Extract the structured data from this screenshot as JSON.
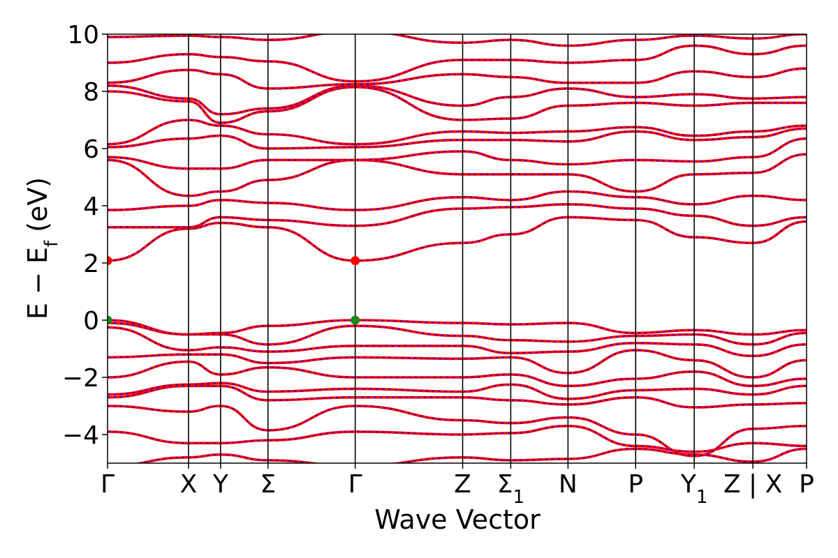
{
  "chart_data": {
    "type": "line",
    "title": "",
    "xlabel": "Wave Vector",
    "ylabel": "E − E_f (eV)",
    "ylabel_parts": {
      "main": "E − E",
      "sub": "f",
      "unit": " (eV)"
    },
    "ylim": [
      -5,
      10
    ],
    "yticks": [
      -4,
      -2,
      0,
      2,
      4,
      6,
      8,
      10
    ],
    "ytick_labels": [
      "−4",
      "−2",
      "0",
      "2",
      "4",
      "6",
      "8",
      "10"
    ],
    "xlim": [
      0,
      1
    ],
    "kpoints": [
      {
        "label": "Γ",
        "sub": "",
        "x": 0.0
      },
      {
        "label": "X",
        "sub": "",
        "x": 0.1158
      },
      {
        "label": "Y",
        "sub": "",
        "x": 0.1617
      },
      {
        "label": "Σ",
        "sub": "",
        "x": 0.2295
      },
      {
        "label": "Γ",
        "sub": "",
        "x": 0.3543
      },
      {
        "label": "Z",
        "sub": "",
        "x": 0.508
      },
      {
        "label": "Σ",
        "sub": "1",
        "x": 0.5768
      },
      {
        "label": "N",
        "sub": "",
        "x": 0.6587
      },
      {
        "label": "P",
        "sub": "",
        "x": 0.7555
      },
      {
        "label": "Y",
        "sub": "1",
        "x": 0.8393
      },
      {
        "label": "Z | X",
        "sub": "",
        "x": 0.9232
      },
      {
        "label": "P",
        "sub": "",
        "x": 1.0
      }
    ],
    "grid": false,
    "legend": "none",
    "series": [
      {
        "values_at_kpoints": [
          -5.1,
          -4.8,
          -4.7,
          -4.9,
          -5.1,
          -4.8,
          -4.9,
          -4.85,
          -4.5,
          -4.7,
          -4.95,
          -4.5
        ]
      },
      {
        "values_at_kpoints": [
          -3.9,
          -4.3,
          -4.3,
          -4.2,
          -3.9,
          -4.0,
          -3.95,
          -3.7,
          -4.4,
          -4.6,
          -4.3,
          -4.4
        ]
      },
      {
        "values_at_kpoints": [
          -3.0,
          -3.2,
          -3.0,
          -3.85,
          -3.0,
          -3.5,
          -3.6,
          -3.4,
          -4.0,
          -4.75,
          -3.8,
          -3.7
        ]
      },
      {
        "values_at_kpoints": [
          -2.7,
          -2.3,
          -2.3,
          -2.8,
          -2.7,
          -2.7,
          -2.8,
          -2.95,
          -2.7,
          -3.05,
          -2.95,
          -2.9
        ]
      },
      {
        "values_at_kpoints": [
          -2.6,
          -2.25,
          -2.2,
          -2.5,
          -2.4,
          -2.5,
          -2.25,
          -2.75,
          -2.45,
          -2.4,
          -2.6,
          -2.3
        ]
      },
      {
        "values_at_kpoints": [
          -2.0,
          -1.45,
          -1.9,
          -1.65,
          -2.0,
          -2.0,
          -1.9,
          -2.3,
          -2.05,
          -1.8,
          -2.3,
          -2.05
        ]
      },
      {
        "values_at_kpoints": [
          -1.3,
          -1.2,
          -1.2,
          -1.5,
          -1.3,
          -1.35,
          -1.3,
          -1.85,
          -1.05,
          -1.4,
          -2.0,
          -1.4
        ]
      },
      {
        "values_at_kpoints": [
          -0.25,
          -1.05,
          -0.95,
          -1.1,
          -0.9,
          -0.9,
          -1.15,
          -1.1,
          -0.8,
          -0.85,
          -1.25,
          -0.85
        ]
      },
      {
        "values_at_kpoints": [
          -0.1,
          -0.5,
          -0.5,
          -0.85,
          -0.2,
          -0.55,
          -0.7,
          -0.75,
          -0.55,
          -0.5,
          -0.85,
          -0.45
        ]
      },
      {
        "values_at_kpoints": [
          0.0,
          -0.5,
          -0.45,
          -0.2,
          0.0,
          -0.1,
          -0.15,
          -0.1,
          -0.45,
          -0.35,
          -0.5,
          -0.35
        ]
      },
      {
        "values_at_kpoints": [
          2.08,
          3.2,
          3.4,
          3.25,
          2.08,
          2.7,
          3.0,
          3.6,
          3.5,
          2.9,
          2.7,
          3.45
        ]
      },
      {
        "values_at_kpoints": [
          3.25,
          3.25,
          3.6,
          3.5,
          3.3,
          3.9,
          3.95,
          4.05,
          3.9,
          3.65,
          3.3,
          3.6
        ]
      },
      {
        "values_at_kpoints": [
          3.85,
          4.0,
          4.2,
          4.1,
          3.85,
          4.3,
          4.2,
          4.5,
          4.3,
          4.05,
          4.35,
          4.2
        ]
      },
      {
        "values_at_kpoints": [
          5.6,
          4.35,
          4.5,
          4.9,
          5.6,
          5.1,
          5.1,
          5.1,
          4.5,
          5.1,
          5.15,
          5.8
        ]
      },
      {
        "values_at_kpoints": [
          5.7,
          5.3,
          5.3,
          5.6,
          5.6,
          5.9,
          5.6,
          5.45,
          5.6,
          5.55,
          5.7,
          6.35
        ]
      },
      {
        "values_at_kpoints": [
          6.05,
          6.35,
          6.45,
          6.0,
          6.05,
          6.3,
          6.3,
          6.25,
          6.6,
          6.3,
          6.4,
          6.7
        ]
      },
      {
        "values_at_kpoints": [
          6.15,
          7.0,
          6.8,
          6.5,
          6.15,
          6.6,
          6.55,
          6.6,
          6.75,
          6.45,
          6.6,
          6.8
        ]
      },
      {
        "values_at_kpoints": [
          8.0,
          7.65,
          6.9,
          7.3,
          8.15,
          7.0,
          7.05,
          7.5,
          7.6,
          7.5,
          7.6,
          7.6
        ]
      },
      {
        "values_at_kpoints": [
          8.2,
          7.75,
          7.2,
          7.4,
          8.2,
          7.5,
          7.8,
          8.1,
          7.8,
          7.9,
          7.75,
          7.8
        ]
      },
      {
        "values_at_kpoints": [
          8.3,
          8.75,
          8.6,
          8.1,
          8.25,
          8.6,
          8.5,
          8.3,
          8.3,
          8.7,
          8.5,
          8.8
        ]
      },
      {
        "values_at_kpoints": [
          9.0,
          9.3,
          9.2,
          9.05,
          8.35,
          9.1,
          9.1,
          9.0,
          9.1,
          9.6,
          9.3,
          9.6
        ]
      },
      {
        "values_at_kpoints": [
          9.9,
          9.95,
          9.9,
          9.8,
          10.1,
          9.7,
          9.8,
          9.6,
          9.8,
          9.95,
          9.85,
          10.0
        ]
      }
    ],
    "markers": [
      {
        "x": 0.0,
        "y": 2.08,
        "color": "#ff0000"
      },
      {
        "x": 0.3543,
        "y": 2.08,
        "color": "#ff0000"
      },
      {
        "x": 0.0,
        "y": 0.0,
        "color": "#1a8a1a"
      },
      {
        "x": 0.3543,
        "y": 0.0,
        "color": "#1a8a1a"
      }
    ],
    "colors": {
      "band_primary": "#ff0000",
      "band_overlay": "#0000ff",
      "kpoint_line": "#000000"
    }
  }
}
